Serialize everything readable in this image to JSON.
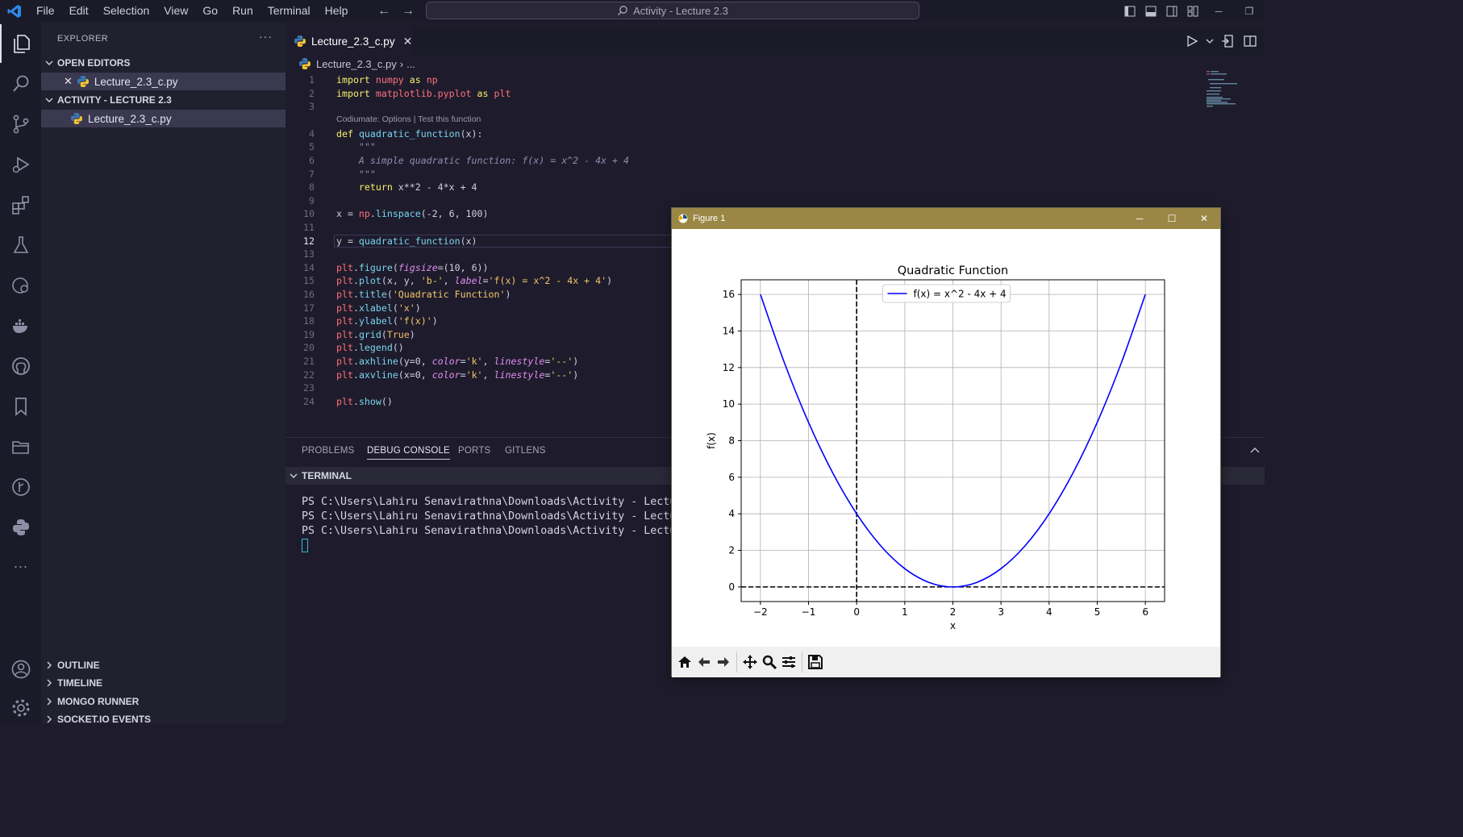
{
  "menu": [
    "File",
    "Edit",
    "Selection",
    "View",
    "Go",
    "Run",
    "Terminal",
    "Help"
  ],
  "command_center": "Activity - Lecture 2.3",
  "sidebar": {
    "title": "EXPLORER",
    "more": "···",
    "open_editors": "OPEN EDITORS",
    "open_file": "Lecture_2.3_c.py",
    "folder": "ACTIVITY - LECTURE 2.3",
    "folder_file": "Lecture_2.3_c.py",
    "bottom_sections": [
      "OUTLINE",
      "TIMELINE",
      "MONGO RUNNER",
      "SOCKET.IO EVENTS"
    ]
  },
  "tab": {
    "label": "Lecture_2.3_c.py",
    "close": "✕"
  },
  "breadcrumb": {
    "file": "Lecture_2.3_c.py",
    "sep": "›",
    "more": "..."
  },
  "codelens": "Codiumate: Options | Test this function",
  "code": [
    {
      "n": "1",
      "text": "import numpy as np"
    },
    {
      "n": "2",
      "text": "import matplotlib.pyplot as plt"
    },
    {
      "n": "3",
      "text": ""
    },
    {
      "n": "4",
      "text": "def quadratic_function(x):"
    },
    {
      "n": "5",
      "text": "    \"\"\""
    },
    {
      "n": "6",
      "text": "    A simple quadratic function: f(x) = x^2 - 4x + 4"
    },
    {
      "n": "7",
      "text": "    \"\"\""
    },
    {
      "n": "8",
      "text": "    return x**2 - 4*x + 4"
    },
    {
      "n": "9",
      "text": ""
    },
    {
      "n": "10",
      "text": "x = np.linspace(-2, 6, 100)"
    },
    {
      "n": "11",
      "text": ""
    },
    {
      "n": "12",
      "text": "y = quadratic_function(x)"
    },
    {
      "n": "13",
      "text": ""
    },
    {
      "n": "14",
      "text": "plt.figure(figsize=(10, 6))"
    },
    {
      "n": "15",
      "text": "plt.plot(x, y, 'b-', label='f(x) = x^2 - 4x + 4')"
    },
    {
      "n": "16",
      "text": "plt.title('Quadratic Function')"
    },
    {
      "n": "17",
      "text": "plt.xlabel('x')"
    },
    {
      "n": "18",
      "text": "plt.ylabel('f(x)')"
    },
    {
      "n": "19",
      "text": "plt.grid(True)"
    },
    {
      "n": "20",
      "text": "plt.legend()"
    },
    {
      "n": "21",
      "text": "plt.axhline(y=0, color='k', linestyle='--')"
    },
    {
      "n": "22",
      "text": "plt.axvline(x=0, color='k', linestyle='--')"
    },
    {
      "n": "23",
      "text": ""
    },
    {
      "n": "24",
      "text": "plt.show()"
    }
  ],
  "panel": {
    "tabs": [
      "PROBLEMS",
      "DEBUG CONSOLE",
      "PORTS",
      "GITLENS"
    ],
    "terminal_label": "TERMINAL",
    "lines": [
      "PS C:\\Users\\Lahiru Senavirathna\\Downloads\\Activity - Lectur",
      "PS C:\\Users\\Lahiru Senavirathna\\Downloads\\Activity - Lectur",
      "PS C:\\Users\\Lahiru Senavirathna\\Downloads\\Activity - Lectur"
    ]
  },
  "figure": {
    "window_title": "Figure 1"
  },
  "chart_data": {
    "type": "line",
    "title": "Quadratic Function",
    "xlabel": "x",
    "ylabel": "f(x)",
    "xlim": [
      -2.4,
      6.4
    ],
    "ylim": [
      -0.8,
      16.8
    ],
    "xticks": [
      -2,
      -1,
      0,
      1,
      2,
      3,
      4,
      5,
      6
    ],
    "xtick_labels": [
      "−2",
      "−1",
      "0",
      "1",
      "2",
      "3",
      "4",
      "5",
      "6"
    ],
    "yticks": [
      0,
      2,
      4,
      6,
      8,
      10,
      12,
      14,
      16
    ],
    "grid": true,
    "legend_position": "top-center",
    "series": [
      {
        "name": "f(x) = x^2 - 4x + 4",
        "color": "#0000ff",
        "x": [
          -2,
          -1.5,
          -1,
          -0.5,
          0,
          0.5,
          1,
          1.5,
          2,
          2.5,
          3,
          3.5,
          4,
          4.5,
          5,
          5.5,
          6
        ],
        "y": [
          16,
          12.25,
          9,
          6.25,
          4,
          2.25,
          1,
          0.25,
          0,
          0.25,
          1,
          2.25,
          4,
          6.25,
          9,
          12.25,
          16
        ]
      }
    ],
    "reference_lines": [
      {
        "axis": "y",
        "value": 0,
        "color": "#000000",
        "style": "dashed"
      },
      {
        "axis": "x",
        "value": 0,
        "color": "#000000",
        "style": "dashed"
      }
    ]
  }
}
